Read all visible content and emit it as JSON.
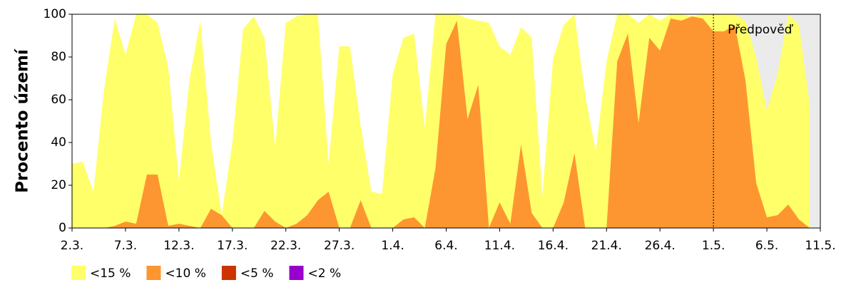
{
  "chart_data": {
    "type": "area",
    "ylabel": "Procento území",
    "categories": [
      "2.3.",
      null,
      null,
      null,
      null,
      "7.3.",
      null,
      null,
      null,
      null,
      "12.3.",
      null,
      null,
      null,
      null,
      "17.3.",
      null,
      null,
      null,
      null,
      "22.3.",
      null,
      null,
      null,
      null,
      "27.3.",
      null,
      null,
      null,
      null,
      "1.4.",
      null,
      null,
      null,
      null,
      "6.4.",
      null,
      null,
      null,
      null,
      "11.4.",
      null,
      null,
      null,
      null,
      "16.4.",
      null,
      null,
      null,
      null,
      "21.4.",
      null,
      null,
      null,
      null,
      "26.4.",
      null,
      null,
      null,
      null,
      "1.5.",
      null,
      null,
      null,
      null,
      "6.5.",
      null,
      null,
      null,
      null,
      "11.5."
    ],
    "series": [
      {
        "name": "<15 %",
        "color": "#ffff6a",
        "values": [
          30,
          31,
          17,
          65,
          98,
          81,
          100,
          100,
          96,
          75,
          22,
          70,
          97,
          40,
          6,
          40,
          93,
          99,
          89,
          38,
          96,
          99,
          100,
          100,
          30,
          85,
          85,
          48,
          17,
          16,
          72,
          89,
          91,
          47,
          100,
          100,
          100,
          98,
          97,
          96,
          85,
          81,
          94,
          89,
          15,
          79,
          95,
          100,
          62,
          36,
          78,
          100,
          100,
          96,
          100,
          97,
          100,
          100,
          99,
          100,
          100,
          100,
          100,
          97,
          80,
          55,
          72,
          100,
          95,
          58,
          null
        ]
      },
      {
        "name": "<10 %",
        "color": "#fd9630",
        "values": [
          0,
          0,
          0,
          0,
          1,
          3,
          2,
          25,
          25,
          1,
          2,
          1,
          0,
          9,
          6,
          0,
          0,
          0,
          8,
          3,
          0,
          2,
          6,
          13,
          17,
          0,
          0,
          13,
          0,
          0,
          0,
          4,
          5,
          0,
          28,
          86,
          97,
          51,
          67,
          0,
          12,
          2,
          39,
          7,
          0,
          0,
          12,
          35,
          0,
          0,
          0,
          78,
          91,
          49,
          89,
          83,
          98,
          97,
          99,
          98,
          92,
          92,
          95,
          69,
          21,
          5,
          6,
          11,
          4,
          0,
          null
        ]
      },
      {
        "name": "<5 %",
        "color": "#cc3300",
        "values": [
          0,
          0,
          0,
          0,
          0,
          0,
          0,
          0,
          0,
          0,
          0,
          0,
          0,
          0,
          0,
          0,
          0,
          0,
          0,
          0,
          0,
          0,
          0,
          0,
          0,
          0,
          0,
          0,
          0,
          0,
          0,
          0,
          0,
          0,
          0,
          0,
          0,
          0,
          0,
          0,
          0,
          0,
          0,
          0,
          0,
          0,
          0,
          0,
          0,
          0,
          0,
          0,
          0,
          0,
          0,
          0,
          0,
          0,
          0,
          0,
          0,
          0,
          0,
          0,
          0,
          0,
          0,
          0,
          0,
          0,
          null
        ]
      },
      {
        "name": "<2 %",
        "color": "#9900cc",
        "values": [
          0,
          0,
          0,
          0,
          0,
          0,
          0,
          0,
          0,
          0,
          0,
          0,
          0,
          0,
          0,
          0,
          0,
          0,
          0,
          0,
          0,
          0,
          0,
          0,
          0,
          0,
          0,
          0,
          0,
          0,
          0,
          0,
          0,
          0,
          0,
          0,
          0,
          0,
          0,
          0,
          0,
          0,
          0,
          0,
          0,
          0,
          0,
          0,
          0,
          0,
          0,
          0,
          0,
          0,
          0,
          0,
          0,
          0,
          0,
          0,
          0,
          0,
          0,
          0,
          0,
          0,
          0,
          0,
          0,
          0,
          null
        ]
      }
    ],
    "ylim": [
      0,
      100
    ],
    "yticks": [
      0,
      20,
      40,
      60,
      80,
      100
    ],
    "annotation": {
      "text": "Předpověď",
      "index": 60
    },
    "forecast_color": "#ebebeb"
  }
}
